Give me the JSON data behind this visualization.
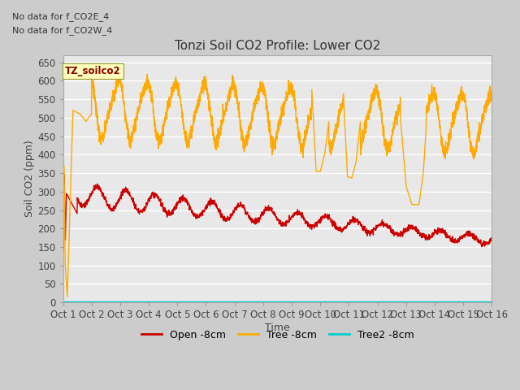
{
  "title": "Tonzi Soil CO2 Profile: Lower CO2",
  "xlabel": "Time",
  "ylabel": "Soil CO2 (ppm)",
  "ylim": [
    0,
    670
  ],
  "yticks": [
    0,
    50,
    100,
    150,
    200,
    250,
    300,
    350,
    400,
    450,
    500,
    550,
    600,
    650
  ],
  "xlim": [
    0,
    15
  ],
  "xtick_labels": [
    "Oct 1",
    "Oct 2",
    "Oct 3",
    "Oct 4",
    "Oct 5",
    "Oct 6",
    "Oct 7",
    "Oct 8",
    "Oct 9",
    "Oct 10",
    "Oct 11",
    "Oct 12",
    "Oct 13",
    "Oct 14",
    "Oct 15",
    "Oct 16"
  ],
  "no_data_text_1": "No data for f_CO2E_4",
  "no_data_text_2": "No data for f_CO2W_4",
  "watermark_text": "TZ_soilco2",
  "legend_labels": [
    "Open -8cm",
    "Tree -8cm",
    "Tree2 -8cm"
  ],
  "open_color": "#cc0000",
  "tree_color": "#ffaa00",
  "tree2_color": "#00cccc",
  "fig_bg_color": "#cccccc",
  "plot_bg_color": "#e8e8e8",
  "grid_color": "#ffffff",
  "title_fontsize": 11,
  "axis_fontsize": 9,
  "tick_fontsize": 8.5
}
